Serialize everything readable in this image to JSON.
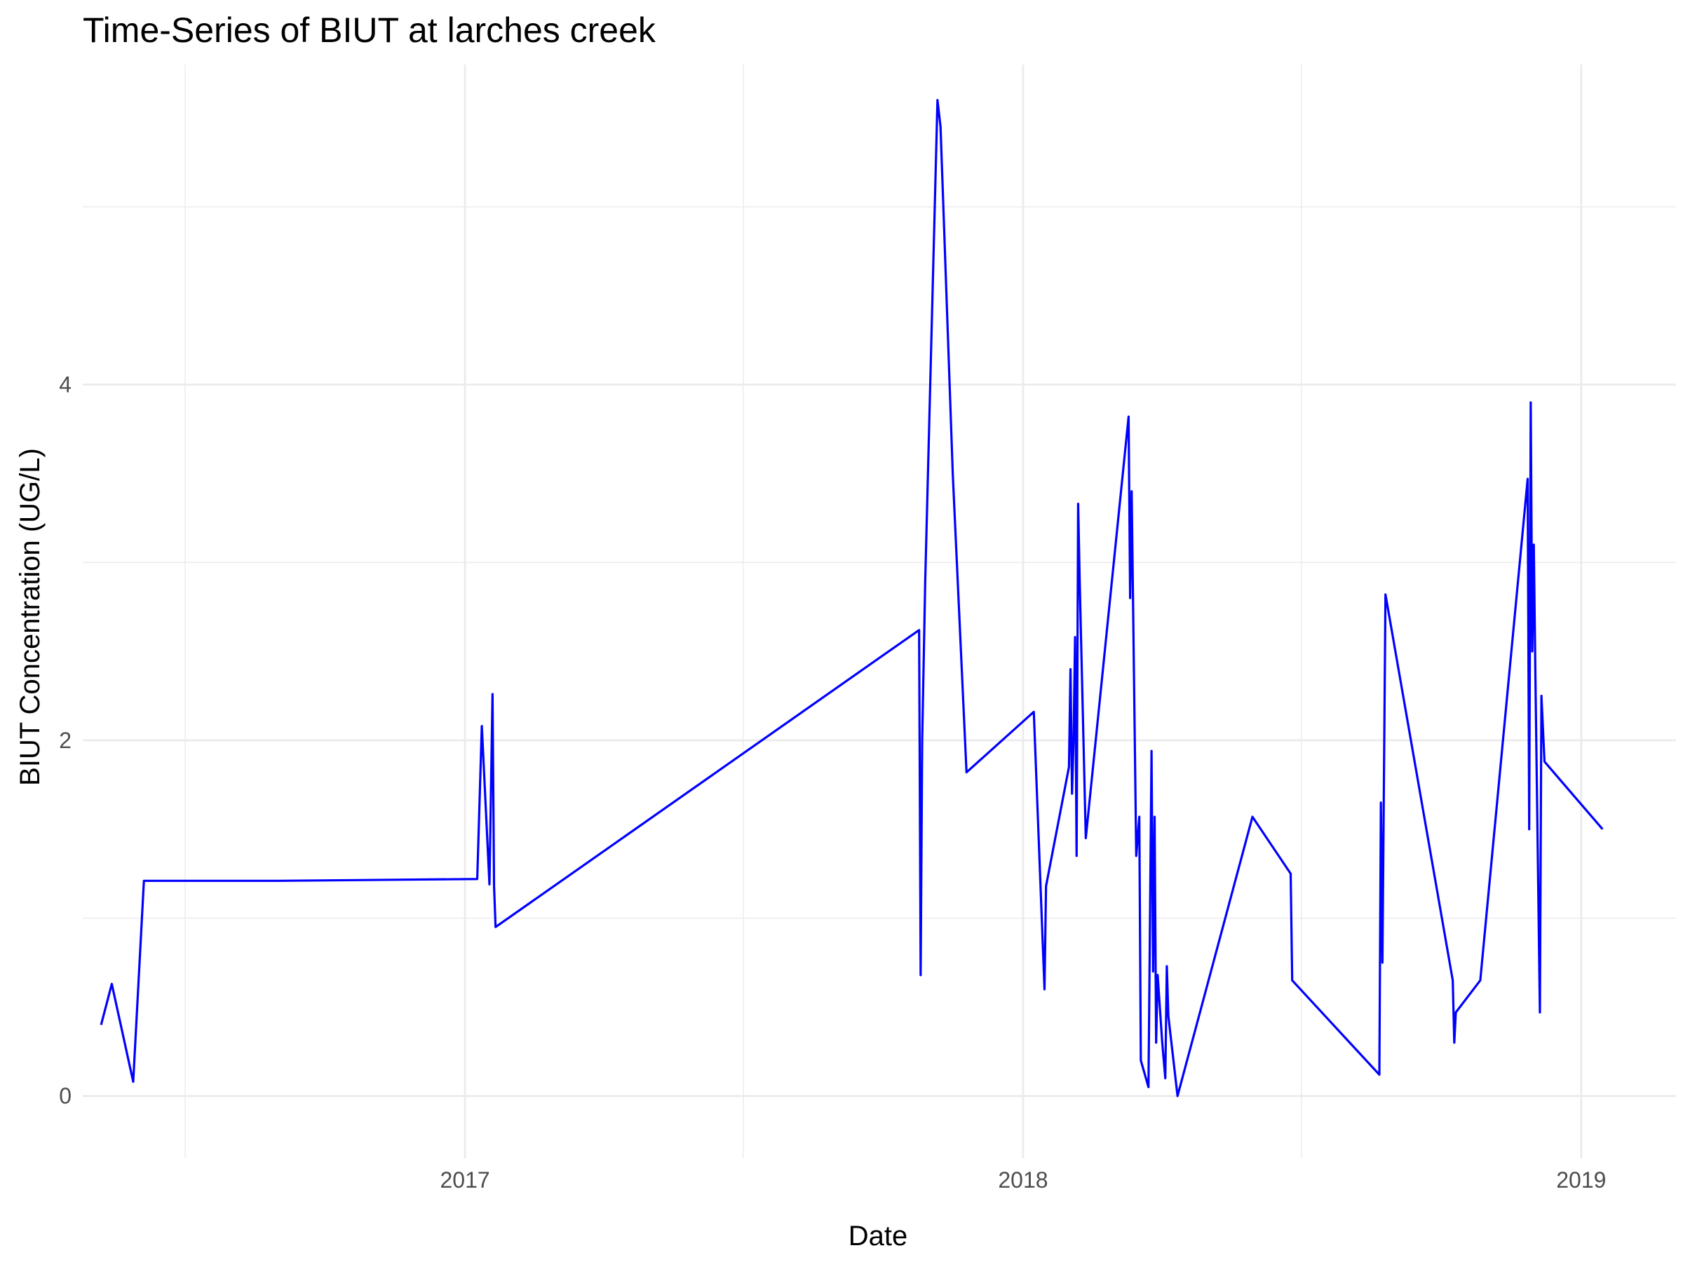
{
  "chart_data": {
    "type": "line",
    "title": "Time-Series of BIUT at larches creek",
    "xlabel": "Date",
    "ylabel": "BIUT Concentration (UG/L)",
    "xlim": [
      "2016-04-26",
      "2019-03-04"
    ],
    "ylim": [
      -0.35,
      5.8
    ],
    "x_ticks": [
      {
        "value": "2017-01-01",
        "label": "2017"
      },
      {
        "value": "2018-01-01",
        "label": "2018"
      },
      {
        "value": "2019-01-01",
        "label": "2019"
      }
    ],
    "x_minor_ticks": [
      "2016-07-02",
      "2017-07-02",
      "2018-07-02"
    ],
    "y_ticks": [
      0,
      2,
      4
    ],
    "y_minor_ticks": [
      1,
      3,
      5
    ],
    "grid": true,
    "line_color": "#0000ff",
    "series": [
      {
        "points": [
          [
            "2016-05-08",
            0.4
          ],
          [
            "2016-05-15",
            0.63
          ],
          [
            "2016-05-29",
            0.08
          ],
          [
            "2016-06-05",
            1.21
          ],
          [
            "2016-09-01",
            1.21
          ],
          [
            "2017-01-09",
            1.22
          ],
          [
            "2017-01-12",
            2.08
          ],
          [
            "2017-01-17",
            1.19
          ],
          [
            "2017-01-19",
            2.26
          ],
          [
            "2017-01-20",
            1.18
          ],
          [
            "2017-01-21",
            0.95
          ],
          [
            "2017-10-25",
            2.62
          ],
          [
            "2017-10-26",
            0.68
          ],
          [
            "2017-10-27",
            2.0
          ],
          [
            "2017-10-29",
            2.9
          ],
          [
            "2017-11-06",
            5.6
          ],
          [
            "2017-11-08",
            5.45
          ],
          [
            "2017-11-16",
            3.5
          ],
          [
            "2017-11-25",
            1.82
          ],
          [
            "2018-01-08",
            2.16
          ],
          [
            "2018-01-15",
            0.6
          ],
          [
            "2018-01-16",
            1.18
          ],
          [
            "2018-01-31",
            1.85
          ],
          [
            "2018-02-01",
            2.4
          ],
          [
            "2018-02-02",
            1.7
          ],
          [
            "2018-02-03",
            2.0
          ],
          [
            "2018-02-04",
            2.58
          ],
          [
            "2018-02-05",
            1.35
          ],
          [
            "2018-02-06",
            3.33
          ],
          [
            "2018-02-07",
            2.9
          ],
          [
            "2018-02-11",
            1.45
          ],
          [
            "2018-03-11",
            3.82
          ],
          [
            "2018-03-12",
            2.8
          ],
          [
            "2018-03-13",
            3.4
          ],
          [
            "2018-03-16",
            1.35
          ],
          [
            "2018-03-18",
            1.57
          ],
          [
            "2018-03-19",
            0.2
          ],
          [
            "2018-03-24",
            0.05
          ],
          [
            "2018-03-26",
            1.94
          ],
          [
            "2018-03-27",
            0.7
          ],
          [
            "2018-03-28",
            1.57
          ],
          [
            "2018-03-29",
            0.3
          ],
          [
            "2018-03-30",
            0.68
          ],
          [
            "2018-04-02",
            0.3
          ],
          [
            "2018-04-04",
            0.1
          ],
          [
            "2018-04-05",
            0.73
          ],
          [
            "2018-04-06",
            0.45
          ],
          [
            "2018-04-12",
            0.0
          ],
          [
            "2018-05-31",
            1.57
          ],
          [
            "2018-06-25",
            1.25
          ],
          [
            "2018-06-26",
            0.65
          ],
          [
            "2018-08-22",
            0.12
          ],
          [
            "2018-08-23",
            1.65
          ],
          [
            "2018-08-24",
            0.75
          ],
          [
            "2018-08-26",
            2.82
          ],
          [
            "2018-10-09",
            0.65
          ],
          [
            "2018-10-10",
            0.3
          ],
          [
            "2018-10-11",
            0.47
          ],
          [
            "2018-10-27",
            0.65
          ],
          [
            "2018-11-27",
            3.47
          ],
          [
            "2018-11-28",
            1.5
          ],
          [
            "2018-11-29",
            3.9
          ],
          [
            "2018-11-30",
            2.5
          ],
          [
            "2018-12-01",
            3.1
          ],
          [
            "2018-12-02",
            2.4
          ],
          [
            "2018-12-05",
            0.47
          ],
          [
            "2018-12-06",
            2.25
          ],
          [
            "2018-12-08",
            1.88
          ],
          [
            "2019-01-15",
            1.5
          ]
        ]
      }
    ]
  }
}
